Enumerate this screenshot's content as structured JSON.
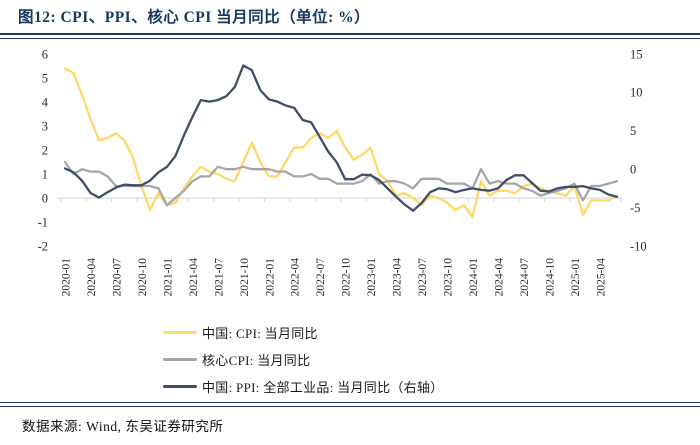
{
  "title": "图12:  CPI、PPI、核心 CPI 当月同比（单位: %）",
  "footer": {
    "source": "数据来源: Wind, 东吴证券研究所"
  },
  "colors": {
    "accent": "#1F3864",
    "title_text": "#17375E",
    "cpi": "#FFD966",
    "core_cpi": "#A6A6A6",
    "ppi": "#3F4E68",
    "axis_line": "#D9D9D9",
    "tick_text": "#2b2b2b"
  },
  "chart_data": {
    "type": "line",
    "title": "CPI、PPI、核心CPI 当月同比 (%)",
    "x": [
      "2020-01",
      "2020-02",
      "2020-03",
      "2020-04",
      "2020-05",
      "2020-06",
      "2020-07",
      "2020-08",
      "2020-09",
      "2020-10",
      "2020-11",
      "2020-12",
      "2021-01",
      "2021-02",
      "2021-03",
      "2021-04",
      "2021-05",
      "2021-06",
      "2021-07",
      "2021-08",
      "2021-09",
      "2021-10",
      "2021-11",
      "2021-12",
      "2022-01",
      "2022-02",
      "2022-03",
      "2022-04",
      "2022-05",
      "2022-06",
      "2022-07",
      "2022-08",
      "2022-09",
      "2022-10",
      "2022-11",
      "2022-12",
      "2023-01",
      "2023-02",
      "2023-03",
      "2023-04",
      "2023-05",
      "2023-06",
      "2023-07",
      "2023-08",
      "2023-09",
      "2023-10",
      "2023-11",
      "2023-12",
      "2024-01",
      "2024-02",
      "2024-03",
      "2024-04",
      "2024-05",
      "2024-06",
      "2024-07",
      "2024-08",
      "2024-09",
      "2024-10",
      "2024-11",
      "2024-12",
      "2025-01",
      "2025-02",
      "2025-03",
      "2025-04",
      "2025-05",
      "2025-06"
    ],
    "x_tick_labels": [
      "2020-01",
      "2020-04",
      "2020-07",
      "2020-10",
      "2021-01",
      "2021-04",
      "2021-07",
      "2021-10",
      "2022-01",
      "2022-04",
      "2022-07",
      "2022-10",
      "2023-01",
      "2023-04",
      "2023-07",
      "2023-10",
      "2024-01",
      "2024-04",
      "2024-07",
      "2024-10",
      "2025-01",
      "2025-04"
    ],
    "series": [
      {
        "name": "中国: CPI: 当月同比",
        "axis": "left",
        "color_key": "cpi",
        "values": [
          5.4,
          5.2,
          4.3,
          3.3,
          2.4,
          2.5,
          2.7,
          2.4,
          1.7,
          0.5,
          -0.5,
          0.2,
          -0.3,
          -0.2,
          0.4,
          0.9,
          1.3,
          1.1,
          1.0,
          0.8,
          0.7,
          1.5,
          2.3,
          1.5,
          0.9,
          0.9,
          1.5,
          2.1,
          2.1,
          2.5,
          2.7,
          2.5,
          2.8,
          2.1,
          1.6,
          1.8,
          2.1,
          1.0,
          0.7,
          0.1,
          0.2,
          0.0,
          -0.3,
          0.1,
          0.0,
          -0.2,
          -0.5,
          -0.3,
          -0.8,
          0.7,
          0.1,
          0.3,
          0.3,
          0.2,
          0.5,
          0.6,
          0.4,
          0.3,
          0.2,
          0.1,
          0.5,
          -0.7,
          -0.1,
          -0.1,
          -0.1,
          0.1
        ]
      },
      {
        "name": "核心CPI: 当月同比",
        "axis": "left",
        "color_key": "core_cpi",
        "values": [
          1.5,
          1.0,
          1.2,
          1.1,
          1.1,
          0.9,
          0.5,
          0.5,
          0.5,
          0.5,
          0.5,
          0.4,
          -0.3,
          0.0,
          0.3,
          0.7,
          0.9,
          0.9,
          1.3,
          1.2,
          1.2,
          1.3,
          1.2,
          1.2,
          1.2,
          1.1,
          1.1,
          0.9,
          0.9,
          1.0,
          0.8,
          0.8,
          0.6,
          0.6,
          0.6,
          0.7,
          1.0,
          0.6,
          0.7,
          0.7,
          0.6,
          0.4,
          0.8,
          0.8,
          0.8,
          0.6,
          0.6,
          0.6,
          0.4,
          1.2,
          0.6,
          0.7,
          0.6,
          0.6,
          0.4,
          0.3,
          0.1,
          0.2,
          0.3,
          0.4,
          0.6,
          -0.1,
          0.5,
          0.5,
          0.6,
          0.7
        ]
      },
      {
        "name": "中国: PPI: 全部工业品: 当月同比（右轴）",
        "axis": "right",
        "color_key": "ppi",
        "values": [
          0.1,
          -0.4,
          -1.5,
          -3.1,
          -3.7,
          -3.0,
          -2.4,
          -2.0,
          -2.1,
          -2.1,
          -1.5,
          -0.4,
          0.3,
          1.7,
          4.4,
          6.8,
          9.0,
          8.8,
          9.0,
          9.5,
          10.7,
          13.5,
          12.9,
          10.3,
          9.1,
          8.8,
          8.3,
          8.0,
          6.4,
          6.1,
          4.2,
          2.3,
          0.9,
          -1.3,
          -1.3,
          -0.7,
          -0.8,
          -1.4,
          -2.5,
          -3.6,
          -4.6,
          -5.4,
          -4.4,
          -3.0,
          -2.5,
          -2.6,
          -3.0,
          -2.7,
          -2.5,
          -2.7,
          -2.8,
          -2.5,
          -1.4,
          -0.8,
          -0.8,
          -1.8,
          -2.8,
          -2.9,
          -2.5,
          -2.3,
          -2.3,
          -2.2,
          -2.5,
          -2.7,
          -3.3,
          -3.6
        ]
      }
    ],
    "left_axis": {
      "min": -2,
      "max": 6,
      "ticks": [
        6,
        5,
        4,
        3,
        2,
        1,
        0,
        -1,
        -2
      ]
    },
    "right_axis": {
      "min": -10,
      "max": 15,
      "ticks": [
        15,
        10,
        5,
        0,
        -5,
        -10
      ]
    },
    "grid": false,
    "x_axis_at_left_value": 0,
    "legend_position": "bottom-left"
  }
}
